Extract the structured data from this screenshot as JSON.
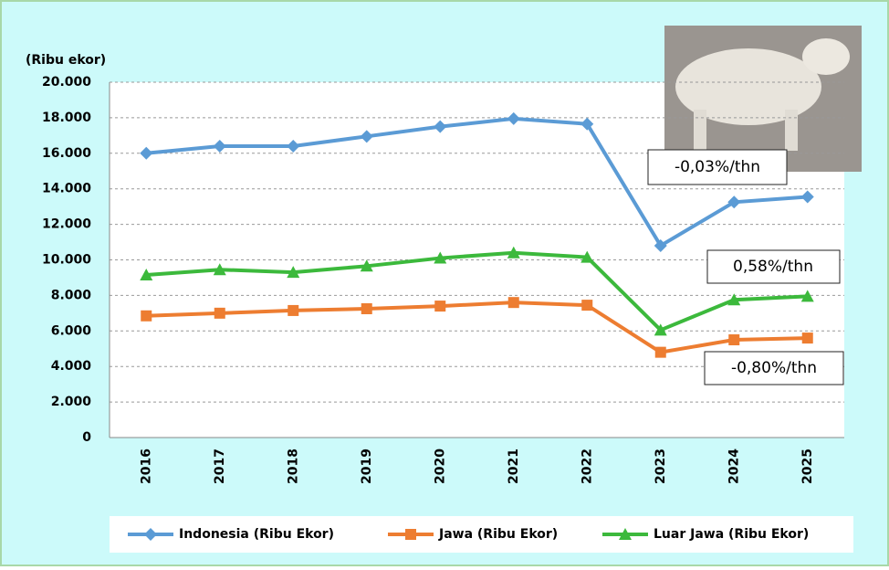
{
  "chart_data": {
    "type": "line",
    "y_label": "(Ribu ekor)",
    "categories": [
      "2016",
      "2017",
      "2018",
      "2019",
      "2020",
      "2021",
      "2022",
      "2023",
      "2024",
      "2025"
    ],
    "series": [
      {
        "name": "Indonesia (Ribu Ekor)",
        "color": "#5b9bd5",
        "marker": "diamond",
        "values": [
          16000,
          16400,
          16400,
          16950,
          17500,
          17950,
          17650,
          10800,
          13250,
          13550
        ]
      },
      {
        "name": "Jawa (Ribu Ekor)",
        "color": "#ed7d31",
        "marker": "square",
        "values": [
          6850,
          7000,
          7150,
          7250,
          7400,
          7600,
          7450,
          4800,
          5500,
          5600
        ]
      },
      {
        "name": "Luar Jawa (Ribu Ekor)",
        "color": "#3cb93c",
        "marker": "triangle",
        "values": [
          9150,
          9450,
          9300,
          9650,
          10100,
          10400,
          10150,
          6050,
          7750,
          7950
        ]
      }
    ],
    "ylim": [
      0,
      20000
    ],
    "yticks": [
      0,
      {
        "value": 2000,
        "label": "2.000"
      },
      {
        "value": 4000,
        "label": "4.000"
      },
      {
        "value": 6000,
        "label": "6.000"
      },
      {
        "value": 8000,
        "label": "8.000"
      },
      {
        "value": 10000,
        "label": "10.000"
      },
      {
        "value": 12000,
        "label": "12.000"
      },
      {
        "value": 14000,
        "label": "14.000"
      },
      {
        "value": 16000,
        "label": "16.000"
      },
      {
        "value": 18000,
        "label": "18.000"
      },
      {
        "value": 20000,
        "label": "20.000"
      }
    ],
    "grid": true,
    "legend": "bottom",
    "annotations": [
      "-0,03%/thn",
      "0,58%/thn",
      "-0,80%/thn"
    ]
  }
}
